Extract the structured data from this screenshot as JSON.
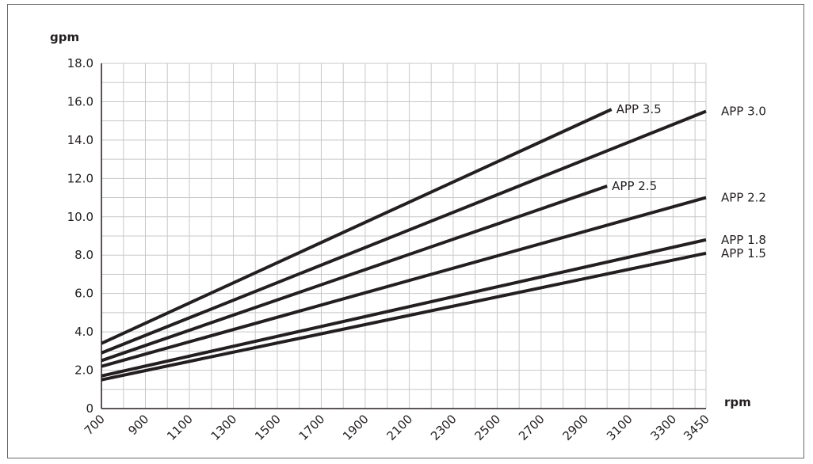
{
  "chart_data": {
    "type": "line",
    "ylabel": "gpm",
    "xlabel": "rpm",
    "xlim": [
      700,
      3450
    ],
    "ylim": [
      0,
      18
    ],
    "x_ticks": [
      700,
      900,
      1100,
      1300,
      1500,
      1700,
      1900,
      2100,
      2300,
      2500,
      2700,
      2900,
      3100,
      3300,
      3450
    ],
    "x_tick_labels": [
      "700",
      "900",
      "1100",
      "1300",
      "1500",
      "1700",
      "1900",
      "2100",
      "2300",
      "2500",
      "2700",
      "2900",
      "3100",
      "3300",
      "3450"
    ],
    "y_ticks": [
      0,
      2,
      4,
      6,
      8,
      10,
      12,
      14,
      16,
      18
    ],
    "y_tick_labels": [
      "0",
      "2.0",
      "4.0",
      "6.0",
      "8.0",
      "10.0",
      "12.0",
      "14.0",
      "16.0",
      "18.0"
    ],
    "grid": true,
    "series_color": "#231f20",
    "grid_color": "#c8c8c8",
    "series": [
      {
        "name": "APP 3.5",
        "x": [
          700,
          3020
        ],
        "y": [
          3.4,
          15.6
        ]
      },
      {
        "name": "APP 3.0",
        "x": [
          700,
          3450
        ],
        "y": [
          2.9,
          15.5
        ]
      },
      {
        "name": "APP 2.5",
        "x": [
          700,
          3000
        ],
        "y": [
          2.5,
          11.6
        ]
      },
      {
        "name": "APP 2.2",
        "x": [
          700,
          3450
        ],
        "y": [
          2.2,
          11.0
        ]
      },
      {
        "name": "APP 1.8",
        "x": [
          700,
          3450
        ],
        "y": [
          1.7,
          8.8
        ]
      },
      {
        "name": "APP 1.5",
        "x": [
          700,
          3450
        ],
        "y": [
          1.5,
          8.1
        ]
      }
    ]
  }
}
